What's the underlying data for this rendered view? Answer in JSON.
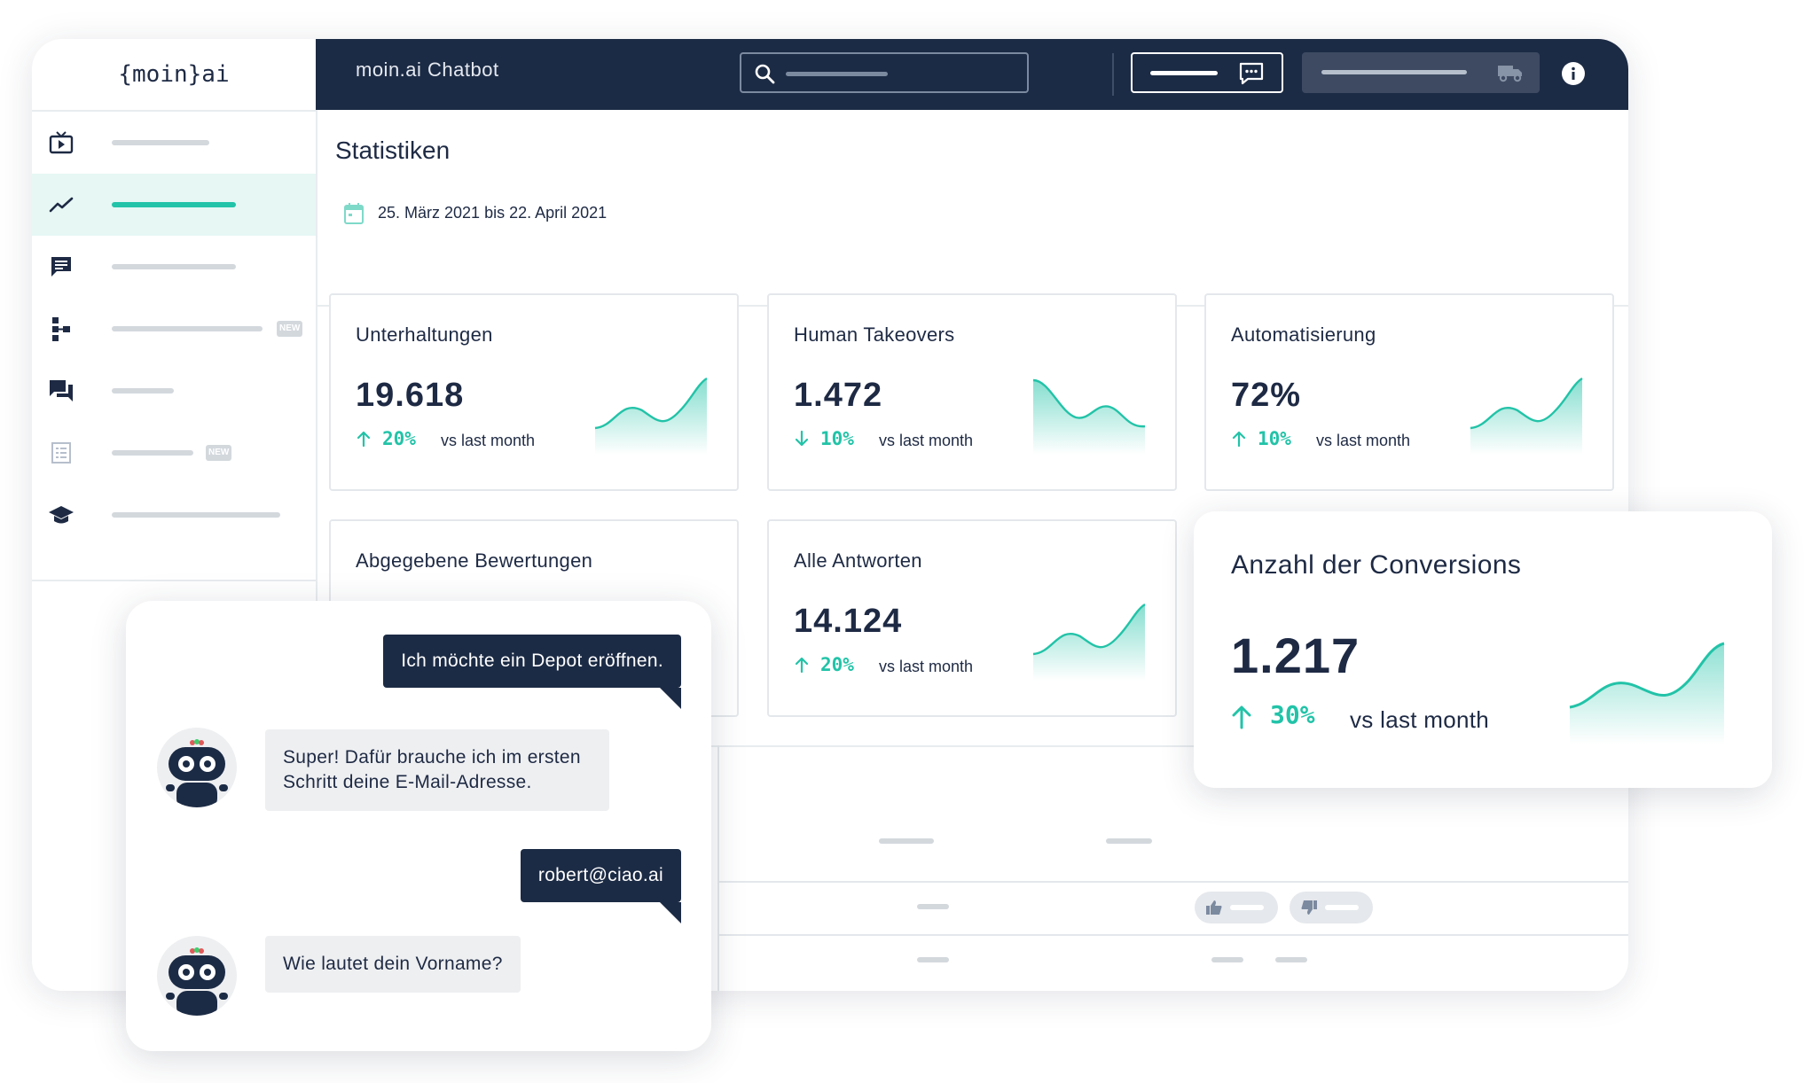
{
  "brand": {
    "logo_text": "{moin}ai"
  },
  "header": {
    "title": "moin.ai Chatbot"
  },
  "page": {
    "title": "Statistiken",
    "date_range": "25. März 2021 bis 22. April 2021"
  },
  "sidebar": {
    "items": [
      {
        "icon": "video-play-icon",
        "badge": ""
      },
      {
        "icon": "trend-line-icon",
        "badge": "",
        "active": true
      },
      {
        "icon": "chat-bubble-icon",
        "badge": ""
      },
      {
        "icon": "flow-chart-icon",
        "badge": "NEW"
      },
      {
        "icon": "conversations-icon",
        "badge": ""
      },
      {
        "icon": "list-icon",
        "badge": "NEW"
      },
      {
        "icon": "graduation-cap-icon",
        "badge": ""
      }
    ]
  },
  "cards": [
    {
      "title": "Unterhaltungen",
      "value": "19.618",
      "pct": "20%",
      "dir": "up",
      "vs": "vs last month"
    },
    {
      "title": "Human Takeovers",
      "value": "1.472",
      "pct": "10%",
      "dir": "down",
      "vs": "vs last month"
    },
    {
      "title": "Automatisierung",
      "value": "72%",
      "pct": "10%",
      "dir": "up",
      "vs": "vs last month"
    },
    {
      "title": "Abgegebene Bewertungen"
    },
    {
      "title": "Alle Antworten",
      "value": "14.124",
      "pct": "20%",
      "dir": "up",
      "vs": "vs last month"
    }
  ],
  "conversion": {
    "title": "Anzahl der Conversions",
    "value": "1.217",
    "pct": "30%",
    "vs": "vs last month"
  },
  "chat": {
    "messages": [
      {
        "from": "user",
        "text": "Ich möchte ein Depot eröffnen."
      },
      {
        "from": "bot",
        "text": "Super! Dafür brauche ich im ersten Schritt deine E-Mail-Adresse."
      },
      {
        "from": "user",
        "text": "robert@ciao.ai"
      },
      {
        "from": "bot",
        "text": "Wie lautet dein Vorname?"
      }
    ]
  },
  "colors": {
    "navy": "#1c2b45",
    "accent": "#22c3a8",
    "muted": "#d3d8dd"
  }
}
